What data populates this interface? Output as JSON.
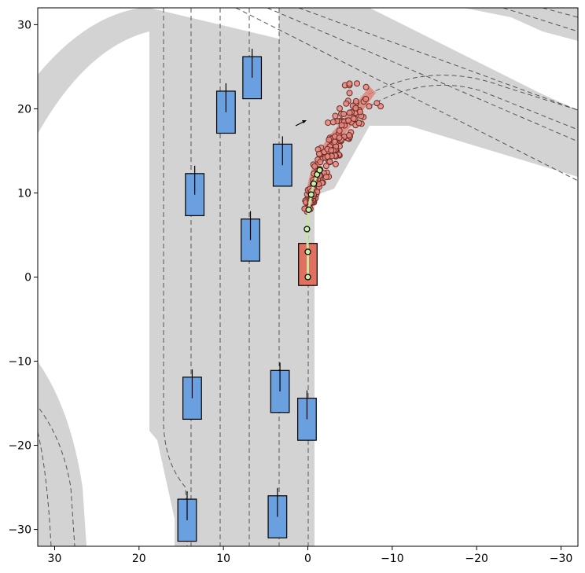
{
  "colors": {
    "road": "#d3d3d3",
    "lane_line": "#555555",
    "ego_vehicle": "#e07060",
    "other_vehicle": "#6aa0e0",
    "prediction_point": "#e88a80",
    "trajectory_band": "#e07a6e",
    "planned_path": "#c8e6a0",
    "planned_point": "#c8f0a0"
  },
  "axes": {
    "xlim": [
      32,
      -32
    ],
    "ylim": [
      -32,
      32
    ],
    "x_ticks": [
      {
        "value": 30,
        "label": "30"
      },
      {
        "value": 20,
        "label": "20"
      },
      {
        "value": 10,
        "label": "10"
      },
      {
        "value": 0,
        "label": "0"
      },
      {
        "value": -10,
        "label": "−10"
      },
      {
        "value": -20,
        "label": "−20"
      },
      {
        "value": -30,
        "label": "−30"
      }
    ],
    "y_ticks": [
      {
        "value": 30,
        "label": "30"
      },
      {
        "value": 20,
        "label": "20"
      },
      {
        "value": 10,
        "label": "10"
      },
      {
        "value": 0,
        "label": "0"
      },
      {
        "value": -10,
        "label": "−10"
      },
      {
        "value": -20,
        "label": "−20"
      },
      {
        "value": -30,
        "label": "−30"
      }
    ]
  },
  "ego_vehicle": {
    "x": 0,
    "y": 1.5,
    "width": 2.2,
    "length": 5.0
  },
  "other_vehicles": [
    {
      "x": 13.4,
      "y": 9.8,
      "heading": "up"
    },
    {
      "x": 9.7,
      "y": 19.6,
      "heading": "up"
    },
    {
      "x": 6.6,
      "y": 23.7,
      "heading": "up"
    },
    {
      "x": 6.8,
      "y": 4.4,
      "heading": "up"
    },
    {
      "x": 3.0,
      "y": 13.3,
      "heading": "up"
    },
    {
      "x": 13.7,
      "y": -14.4,
      "heading": "up"
    },
    {
      "x": 3.3,
      "y": -13.6,
      "heading": "up"
    },
    {
      "x": 0.1,
      "y": -16.9,
      "heading": "up"
    },
    {
      "x": 14.3,
      "y": -28.9,
      "heading": "up"
    },
    {
      "x": 3.6,
      "y": -28.5,
      "heading": "up"
    }
  ],
  "planned_path": [
    {
      "x": 0,
      "y": 0
    },
    {
      "x": 0,
      "y": 3
    },
    {
      "x": 0.1,
      "y": 5.7
    },
    {
      "x": -0.1,
      "y": 8
    },
    {
      "x": -0.4,
      "y": 9.8
    },
    {
      "x": -0.7,
      "y": 11.1
    },
    {
      "x": -1.1,
      "y": 12.2
    },
    {
      "x": -1.4,
      "y": 12.7
    }
  ],
  "predicted_points_count": 170
}
